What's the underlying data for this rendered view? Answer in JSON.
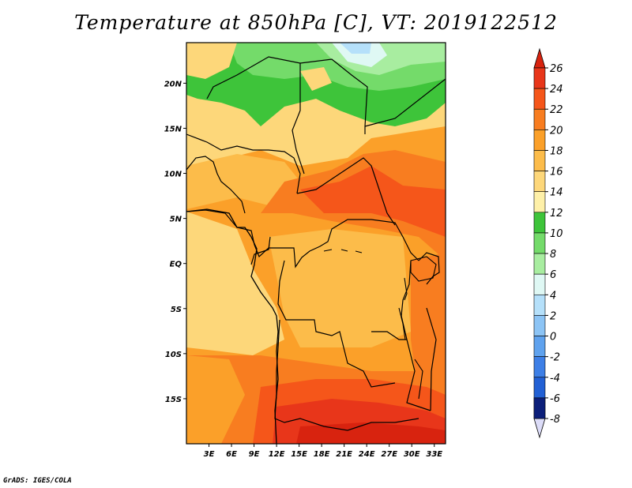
{
  "title": "Temperature at 850hPa [C], VT: 2019122512",
  "footer": "GrADS: IGES/COLA",
  "map": {
    "lon_range": [
      0,
      34.5
    ],
    "lat_range": [
      -20,
      24.5
    ],
    "lat_ticks": [
      {
        "value": 20,
        "label": "20N"
      },
      {
        "value": 15,
        "label": "15N"
      },
      {
        "value": 10,
        "label": "10N"
      },
      {
        "value": 5,
        "label": "5N"
      },
      {
        "value": 0,
        "label": "EQ"
      },
      {
        "value": -5,
        "label": "5S"
      },
      {
        "value": -10,
        "label": "10S"
      },
      {
        "value": -15,
        "label": "15S"
      }
    ],
    "lon_ticks": [
      {
        "value": 3,
        "label": "3E"
      },
      {
        "value": 6,
        "label": "6E"
      },
      {
        "value": 9,
        "label": "9E"
      },
      {
        "value": 12,
        "label": "12E"
      },
      {
        "value": 15,
        "label": "15E"
      },
      {
        "value": 18,
        "label": "18E"
      },
      {
        "value": 21,
        "label": "21E"
      },
      {
        "value": 24,
        "label": "24E"
      },
      {
        "value": 27,
        "label": "27E"
      },
      {
        "value": 30,
        "label": "30E"
      },
      {
        "value": 33,
        "label": "33E"
      }
    ]
  },
  "colorbar": {
    "levels": [
      "26",
      "24",
      "22",
      "20",
      "18",
      "16",
      "14",
      "12",
      "10",
      "8",
      "6",
      "4",
      "2",
      "0",
      "-2",
      "-4",
      "-6",
      "-8"
    ],
    "colors": [
      "#e8361a",
      "#f5561a",
      "#f87d20",
      "#fba029",
      "#fcbc4a",
      "#fdd77a",
      "#fef0a8",
      "#3ec43a",
      "#74db6a",
      "#a8eda0",
      "#dff8f4",
      "#b5e0fa",
      "#8cc4f5",
      "#5fa2ee",
      "#3d7fe6",
      "#2260d4",
      "#1640b0",
      "#0c1f7a"
    ],
    "over_color": "#d8230f",
    "under_color": "#dcdcf8"
  }
}
